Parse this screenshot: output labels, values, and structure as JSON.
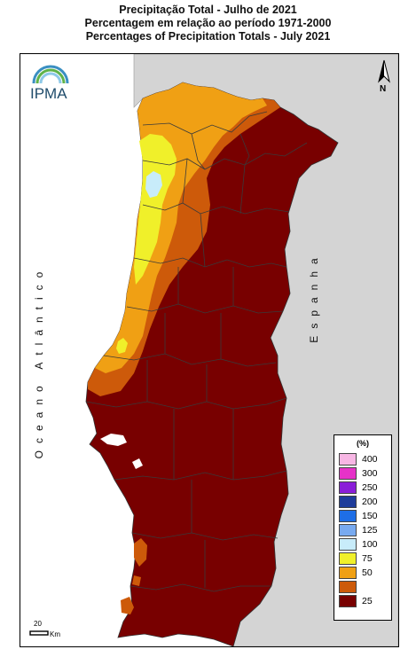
{
  "title": {
    "line1": "Precipitação Total  -  Julho de 2021",
    "line2": "Percentagem em relação ao período 1971-2000",
    "line3": "Percentages of Precipitation Totals - July 2021"
  },
  "labels": {
    "ocean": "Oceano Atlântico",
    "spain": "Espanha"
  },
  "logo": {
    "text": "IPMA",
    "icon": "ipma-logo-icon"
  },
  "north_arrow": {
    "label": "N",
    "icon": "north-arrow-icon"
  },
  "scale_bar": {
    "value": "20",
    "unit": "Km"
  },
  "legend": {
    "title": "(%)",
    "items": [
      {
        "label": "400",
        "color": "#f7b6e4"
      },
      {
        "label": "300",
        "color": "#e632c8"
      },
      {
        "label": "250",
        "color": "#8a1ed8"
      },
      {
        "label": "200",
        "color": "#1e3c9a"
      },
      {
        "label": "150",
        "color": "#1e6ee6"
      },
      {
        "label": "125",
        "color": "#78aaf0"
      },
      {
        "label": "100",
        "color": "#c8ecfa"
      },
      {
        "label": "75",
        "color": "#f0f02a"
      },
      {
        "label": "50",
        "color": "#f0a014"
      },
      {
        "label": "",
        "color": "#cd5a0a"
      },
      {
        "label": "25",
        "color": "#780000"
      }
    ]
  },
  "colors": {
    "land_outside": "#d4d4d4",
    "sea": "#ffffff",
    "border": "#444444"
  }
}
